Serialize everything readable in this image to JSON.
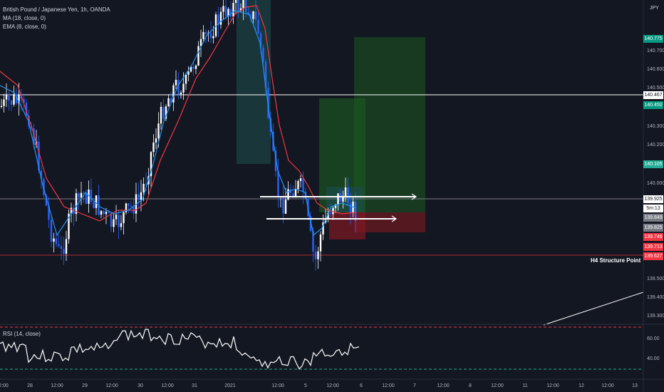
{
  "legend": {
    "symbol": "British Pound / Japanese Yen, 1h, OANDA",
    "ma": "MA (18, close, 0)",
    "ema": "EMA (8, close, 0)",
    "rsi": "RSI (14, close)"
  },
  "currency": "JPY",
  "annotation": "H4 Structure Point",
  "price_axis_ticks": [
    "140.700",
    "140.600",
    "140.500",
    "140.300",
    "140.200",
    "140.000",
    "139.500",
    "139.400",
    "139.300"
  ],
  "price_labels": [
    {
      "text": "140.775",
      "color": "#089981"
    },
    {
      "text": "140.467",
      "color": "#ffffff",
      "fg": "#131722"
    },
    {
      "text": "140.450",
      "color": "#089981"
    },
    {
      "text": "140.105",
      "color": "#22ab94"
    },
    {
      "text": "139.925",
      "color": "#ffffff",
      "fg": "#131722"
    },
    {
      "text": "5m:13",
      "color": "#ffffff",
      "fg": "#131722"
    },
    {
      "text": "139.849",
      "color": "#787b86"
    },
    {
      "text": "139.825",
      "color": "#787b86"
    },
    {
      "text": "139.746",
      "color": "#f23645"
    },
    {
      "text": "139.713",
      "color": "#f23645"
    },
    {
      "text": "139.627",
      "color": "#f23645"
    }
  ],
  "rsi_ticks": [
    "60.00",
    "40.00"
  ],
  "time_axis": [
    "2:00",
    "28",
    "12:00",
    "29",
    "12:00",
    "30",
    "12:00",
    "31",
    "2021",
    "12:00",
    "5",
    "12:00",
    "6",
    "12:00",
    "7",
    "12:00",
    "8",
    "12:00",
    "11",
    "12:00",
    "12",
    "12:00",
    "13"
  ],
  "colors": {
    "bg": "#131722",
    "up": "#ffffff",
    "down": "#2962ff",
    "ma": "#f23645",
    "ema": "#2196f3",
    "long_zone": "#1b5e20",
    "short_zone": "#801922"
  },
  "chart_data": {
    "type": "candlestick",
    "ylim": [
      139.22,
      141.0
    ],
    "horizontal_levels": [
      140.467,
      139.925,
      139.627
    ],
    "series": [
      {
        "name": "MA (18, close, 0)",
        "values": [
          140.42,
          140.4,
          140.2,
          140.0,
          139.85,
          139.8,
          139.85,
          140.0,
          140.3,
          140.6,
          140.85,
          140.95,
          140.7,
          140.2,
          139.95,
          139.9,
          139.82,
          139.85
        ]
      },
      {
        "name": "EMA (8, close, 0)",
        "values": [
          140.45,
          140.3,
          140.0,
          139.75,
          139.7,
          139.9,
          140.2,
          140.5,
          140.8,
          140.95,
          140.9,
          140.3,
          139.9,
          139.92,
          139.7,
          139.8,
          139.85,
          139.86
        ]
      }
    ],
    "rsi": {
      "ylim": [
        20,
        80
      ],
      "levels": [
        70,
        30
      ]
    }
  }
}
